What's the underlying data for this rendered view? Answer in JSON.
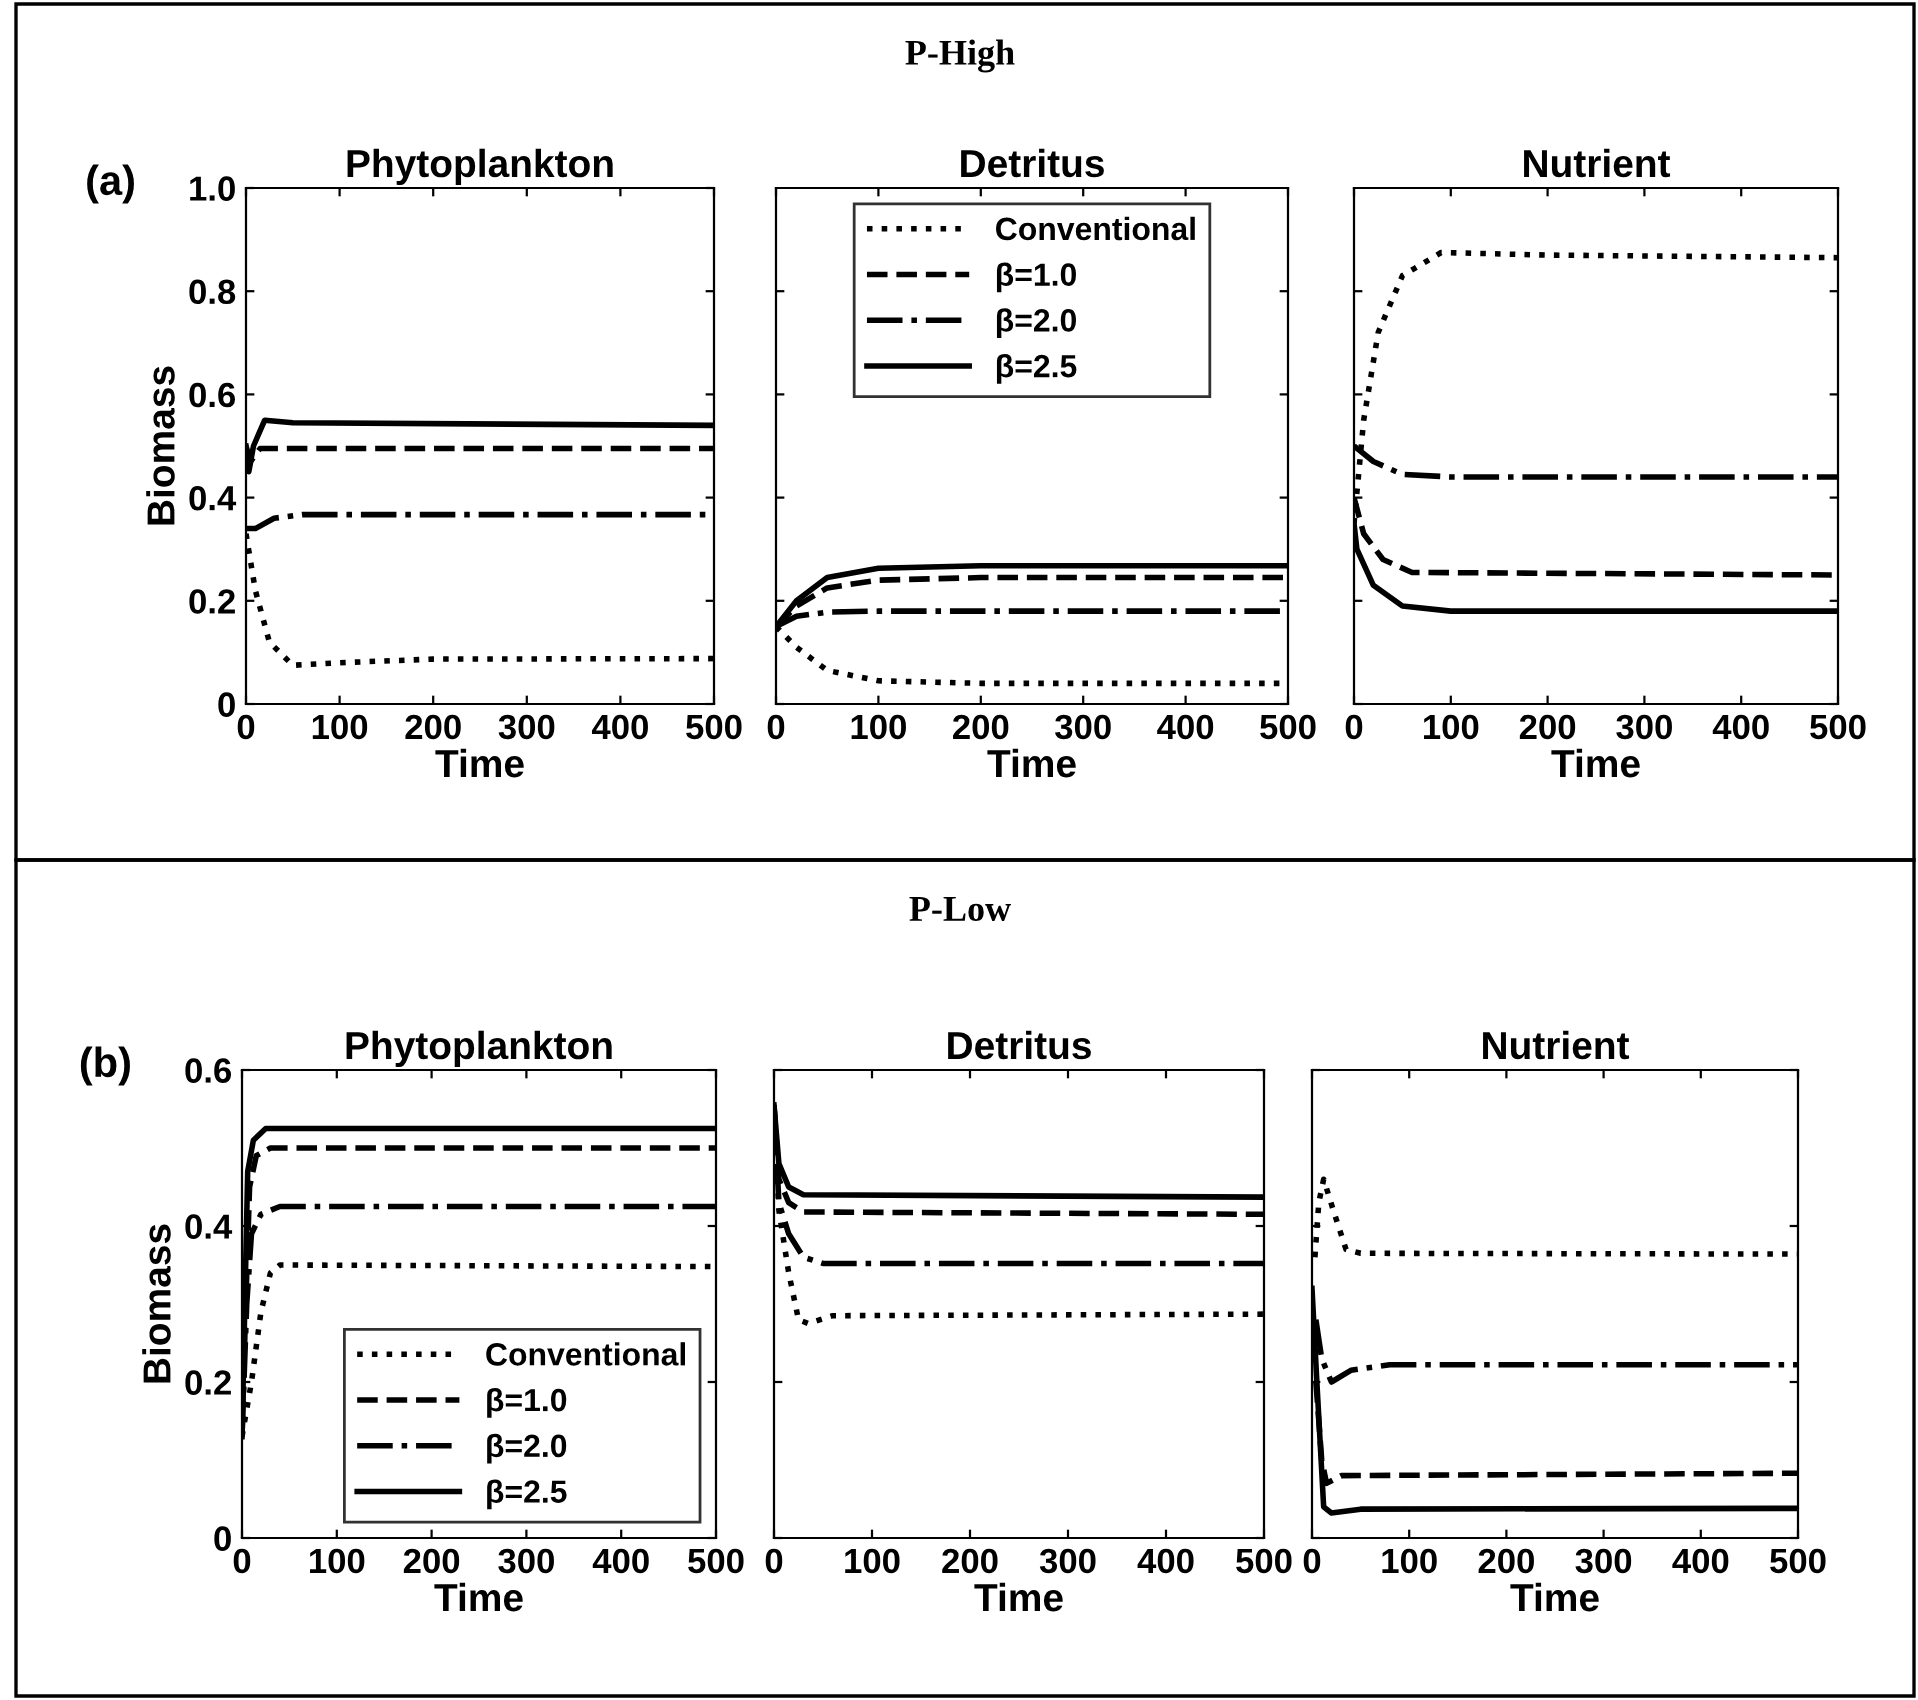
{
  "chart_data": [
    {
      "type": "line",
      "title": "Phytoplankton",
      "xlabel": "Time",
      "ylabel": "Biomass",
      "annotations": [
        "P-High",
        "(a)"
      ],
      "xlim": [
        0,
        500
      ],
      "ylim": [
        0,
        1.0
      ],
      "xticks": [
        0,
        100,
        200,
        300,
        400,
        500
      ],
      "yticks": [
        0,
        0.2,
        0.4,
        0.6,
        0.8,
        {
          "value": 1.0,
          "label": "1.0"
        }
      ],
      "grid": false,
      "series": [
        {
          "color": "#000000",
          "line_style": "dotted",
          "x": [
            0,
            10,
            25,
            50,
            100,
            200,
            500
          ],
          "values": [
            0.33,
            0.22,
            0.12,
            0.075,
            0.08,
            0.087,
            0.088
          ]
        },
        {
          "color": "#000000",
          "line_style": "dashed",
          "x": [
            0,
            5,
            15,
            500
          ],
          "values": [
            0.5,
            0.47,
            0.495,
            0.495
          ]
        },
        {
          "color": "#000000",
          "line_style": "dashdot",
          "x": [
            0,
            10,
            30,
            60,
            500
          ],
          "values": [
            0.34,
            0.34,
            0.36,
            0.367,
            0.367
          ]
        },
        {
          "color": "#000000",
          "line_style": "solid",
          "x": [
            0,
            3,
            8,
            20,
            50,
            500
          ],
          "values": [
            0.5,
            0.45,
            0.5,
            0.55,
            0.545,
            0.54
          ]
        }
      ]
    },
    {
      "type": "line",
      "title": "Detritus",
      "xlabel": "Time",
      "tick_labels": "x",
      "xlim": [
        0,
        500
      ],
      "ylim": [
        0,
        1.0
      ],
      "xticks": [
        0,
        100,
        200,
        300,
        400,
        500
      ],
      "yticks": [
        0,
        0.2,
        0.4,
        0.6,
        0.8
      ],
      "grid": false,
      "legend": "top",
      "series": [
        {
          "name": "Conventional",
          "color": "#000000",
          "line_style": "dotted",
          "x": [
            0,
            20,
            50,
            100,
            200,
            500
          ],
          "values": [
            0.15,
            0.11,
            0.065,
            0.045,
            0.04,
            0.04
          ]
        },
        {
          "name": "β=1.0",
          "color": "#000000",
          "line_style": "dashed",
          "x": [
            0,
            20,
            50,
            100,
            200,
            500
          ],
          "values": [
            0.15,
            0.19,
            0.225,
            0.24,
            0.245,
            0.245
          ]
        },
        {
          "name": "β=2.0",
          "color": "#000000",
          "line_style": "dashdot",
          "x": [
            0,
            20,
            50,
            100,
            500
          ],
          "values": [
            0.15,
            0.17,
            0.178,
            0.18,
            0.18
          ]
        },
        {
          "name": "β=2.5",
          "color": "#000000",
          "line_style": "solid",
          "x": [
            0,
            20,
            50,
            100,
            200,
            500
          ],
          "values": [
            0.15,
            0.2,
            0.245,
            0.263,
            0.268,
            0.268
          ]
        }
      ]
    },
    {
      "type": "line",
      "title": "Nutrient",
      "xlabel": "Time",
      "tick_labels": "x",
      "xlim": [
        0,
        500
      ],
      "ylim": [
        0,
        1.0
      ],
      "xticks": [
        0,
        100,
        200,
        300,
        400,
        500
      ],
      "yticks": [
        0,
        0.2,
        0.4,
        0.6,
        0.8
      ],
      "grid": false,
      "series": [
        {
          "color": "#000000",
          "line_style": "dotted",
          "x": [
            0,
            10,
            25,
            50,
            90,
            200,
            500
          ],
          "values": [
            0.35,
            0.55,
            0.72,
            0.83,
            0.875,
            0.87,
            0.865
          ]
        },
        {
          "color": "#000000",
          "line_style": "dashed",
          "x": [
            0,
            10,
            30,
            60,
            500
          ],
          "values": [
            0.4,
            0.33,
            0.28,
            0.255,
            0.25
          ]
        },
        {
          "color": "#000000",
          "line_style": "dashdot",
          "x": [
            0,
            20,
            50,
            100,
            500
          ],
          "values": [
            0.5,
            0.47,
            0.445,
            0.44,
            0.44
          ]
        },
        {
          "color": "#000000",
          "line_style": "solid",
          "x": [
            0,
            3,
            20,
            50,
            100,
            500
          ],
          "values": [
            0.35,
            0.3,
            0.23,
            0.19,
            0.18,
            0.18
          ]
        }
      ]
    },
    {
      "type": "line",
      "title": "Phytoplankton",
      "xlabel": "Time",
      "ylabel": "Biomass",
      "annotations": [
        "P-Low",
        "(b)"
      ],
      "xlim": [
        0,
        500
      ],
      "ylim": [
        0,
        0.6
      ],
      "xticks": [
        0,
        100,
        200,
        300,
        400,
        500
      ],
      "yticks": [
        0,
        0.2,
        0.4,
        0.6
      ],
      "grid": false,
      "legend": "bottom right",
      "series": [
        {
          "name": "Conventional",
          "color": "#000000",
          "line_style": "dotted",
          "x": [
            0,
            10,
            20,
            30,
            40,
            500
          ],
          "values": [
            0.13,
            0.2,
            0.29,
            0.34,
            0.35,
            0.348
          ]
        },
        {
          "name": "β=1.0",
          "color": "#000000",
          "line_style": "dashed",
          "x": [
            0,
            4,
            8,
            15,
            30,
            500
          ],
          "values": [
            0.13,
            0.3,
            0.45,
            0.49,
            0.5,
            0.5
          ]
        },
        {
          "name": "β=2.0",
          "color": "#000000",
          "line_style": "dashdot",
          "x": [
            0,
            5,
            10,
            20,
            40,
            500
          ],
          "values": [
            0.13,
            0.3,
            0.39,
            0.415,
            0.425,
            0.425
          ]
        },
        {
          "name": "β=2.5",
          "color": "#000000",
          "line_style": "solid",
          "x": [
            0,
            3,
            6,
            12,
            25,
            500
          ],
          "values": [
            0.13,
            0.3,
            0.47,
            0.51,
            0.525,
            0.525
          ]
        }
      ]
    },
    {
      "type": "line",
      "title": "Detritus",
      "xlabel": "Time",
      "tick_labels": "x",
      "xlim": [
        0,
        500
      ],
      "ylim": [
        0,
        0.6
      ],
      "xticks": [
        0,
        100,
        200,
        300,
        400,
        500
      ],
      "yticks": [
        0,
        0.2,
        0.4,
        0.6
      ],
      "grid": false,
      "series": [
        {
          "color": "#000000",
          "line_style": "dotted",
          "x": [
            0,
            5,
            15,
            25,
            35,
            60,
            500
          ],
          "values": [
            0.555,
            0.42,
            0.34,
            0.28,
            0.275,
            0.285,
            0.287
          ]
        },
        {
          "color": "#000000",
          "line_style": "dashed",
          "x": [
            0,
            5,
            15,
            30,
            500
          ],
          "values": [
            0.555,
            0.46,
            0.43,
            0.418,
            0.415
          ]
        },
        {
          "color": "#000000",
          "line_style": "dashdot",
          "x": [
            0,
            5,
            15,
            30,
            50,
            500
          ],
          "values": [
            0.555,
            0.43,
            0.39,
            0.36,
            0.352,
            0.352
          ]
        },
        {
          "color": "#000000",
          "line_style": "solid",
          "x": [
            0,
            5,
            15,
            30,
            500
          ],
          "values": [
            0.555,
            0.48,
            0.45,
            0.44,
            0.437
          ]
        }
      ]
    },
    {
      "type": "line",
      "title": "Nutrient",
      "xlabel": "Time",
      "tick_labels": "x",
      "xlim": [
        0,
        500
      ],
      "ylim": [
        0,
        0.6
      ],
      "xticks": [
        0,
        100,
        200,
        300,
        400,
        500
      ],
      "yticks": [
        0,
        0.2,
        0.4,
        0.6
      ],
      "grid": false,
      "series": [
        {
          "color": "#000000",
          "line_style": "dotted",
          "x": [
            3,
            7,
            12,
            22,
            35,
            50,
            500
          ],
          "values": [
            0.36,
            0.43,
            0.46,
            0.42,
            0.37,
            0.365,
            0.364
          ]
        },
        {
          "color": "#000000",
          "line_style": "dashed",
          "x": [
            4,
            10,
            15,
            30,
            500
          ],
          "values": [
            0.2,
            0.1,
            0.07,
            0.08,
            0.083
          ]
        },
        {
          "color": "#000000",
          "line_style": "dashdot",
          "x": [
            4,
            10,
            20,
            40,
            80,
            500
          ],
          "values": [
            0.28,
            0.23,
            0.2,
            0.215,
            0.222,
            0.222
          ]
        },
        {
          "color": "#000000",
          "line_style": "solid",
          "x": [
            0,
            5,
            12,
            20,
            50,
            500
          ],
          "values": [
            0.32,
            0.2,
            0.04,
            0.032,
            0.037,
            0.038
          ]
        }
      ]
    }
  ]
}
